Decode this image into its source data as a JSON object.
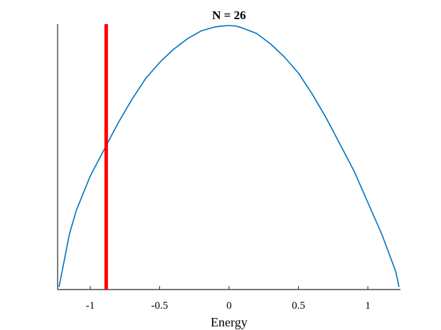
{
  "chart_data": {
    "type": "line",
    "title": "N = 26",
    "xlabel": "Energy",
    "ylabel": "",
    "xlim": [
      -1.235,
      1.235
    ],
    "ylim": [
      0,
      1.0
    ],
    "x_ticks": [
      -1,
      -0.5,
      0,
      0.5,
      1
    ],
    "x_tick_labels": [
      "-1",
      "-0.5",
      "0",
      "0.5",
      "1"
    ],
    "show_y_ticks": false,
    "grid": false,
    "legend": false,
    "series": [
      {
        "color": "#0072bd",
        "x": [
          -1.225,
          -1.15,
          -1.1,
          -1.0,
          -0.9,
          -0.8,
          -0.7,
          -0.6,
          -0.5,
          -0.4,
          -0.3,
          -0.2,
          -0.1,
          -0.05,
          0.0,
          0.05,
          0.1,
          0.2,
          0.3,
          0.4,
          0.5,
          0.6,
          0.7,
          0.8,
          0.9,
          1.0,
          1.1,
          1.2,
          1.225
        ],
        "y": [
          0.01,
          0.21,
          0.3,
          0.43,
          0.53,
          0.63,
          0.72,
          0.8,
          0.86,
          0.91,
          0.95,
          0.98,
          0.995,
          0.998,
          1.0,
          0.998,
          0.99,
          0.97,
          0.93,
          0.88,
          0.82,
          0.74,
          0.65,
          0.55,
          0.45,
          0.33,
          0.21,
          0.07,
          0.01
        ]
      }
    ],
    "vertical_lines": [
      {
        "x": -0.885,
        "color": "#ff0000"
      }
    ]
  }
}
